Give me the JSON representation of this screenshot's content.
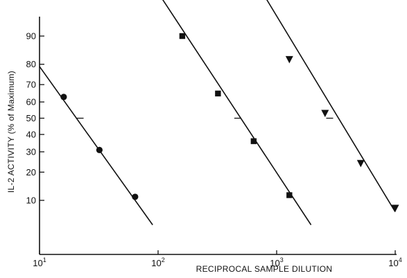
{
  "chart_data": {
    "type": "scatter",
    "xlabel": "RECIPROCAL SAMPLE DILUTION",
    "ylabel": "IL-2 ACTIVITY (% of Maximum)",
    "x_scale": "log",
    "y_scale": "probit",
    "xlim": [
      10,
      10000
    ],
    "ylim": [
      0.2,
      95
    ],
    "x_ticks": [
      {
        "value": 10,
        "base": "10",
        "exp": "1"
      },
      {
        "value": 100,
        "base": "10",
        "exp": "2"
      },
      {
        "value": 1000,
        "base": "10",
        "exp": "3"
      },
      {
        "value": 10000,
        "base": "10",
        "exp": "4"
      }
    ],
    "y_ticks": [
      10,
      20,
      30,
      40,
      50,
      60,
      70,
      80,
      90
    ],
    "grid": false,
    "series": [
      {
        "marker": "circle",
        "points": [
          {
            "x": 16,
            "y": 63
          },
          {
            "x": 32,
            "y": 31
          },
          {
            "x": 64,
            "y": 11
          }
        ],
        "fit_line": [
          [
            10,
            79
          ],
          [
            90,
            4.8
          ]
        ],
        "half_max_x": 22
      },
      {
        "marker": "square",
        "points": [
          {
            "x": 160,
            "y": 90
          },
          {
            "x": 320,
            "y": 65
          },
          {
            "x": 640,
            "y": 36
          },
          {
            "x": 1280,
            "y": 11.5
          }
        ],
        "fit_line": [
          [
            100,
            97.5
          ],
          [
            1950,
            4.8
          ]
        ],
        "half_max_x": 470
      },
      {
        "marker": "triangle-down",
        "points": [
          {
            "x": 1280,
            "y": 82
          },
          {
            "x": 2560,
            "y": 53
          },
          {
            "x": 5120,
            "y": 24
          },
          {
            "x": 10000,
            "y": 8
          }
        ],
        "fit_line": [
          [
            760,
            97.5
          ],
          [
            10000,
            7.2
          ]
        ],
        "half_max_x": 2800
      }
    ]
  }
}
